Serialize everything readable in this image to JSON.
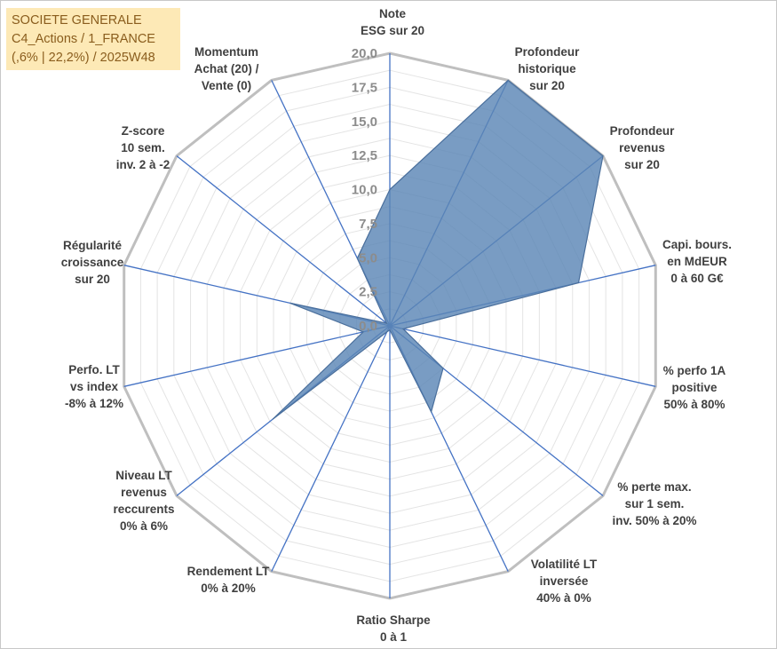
{
  "header": {
    "line1": "SOCIETE GENERALE",
    "line2": "C4_Actions / 1_FRANCE",
    "line3": "(,6% | 22,2%) / 2025W48"
  },
  "chart_data": {
    "type": "radar",
    "title": "SOCIETE GENERALE",
    "r_max": 20,
    "r_ticks": [
      "0,0",
      "2,5",
      "5,0",
      "7,5",
      "10,0",
      "12,5",
      "15,0",
      "17,5",
      "20,0"
    ],
    "r_tick_values": [
      0,
      2.5,
      5,
      7.5,
      10,
      12.5,
      15,
      17.5,
      20
    ],
    "grid_step": 1.25,
    "colors": {
      "fill": "#5b86b6",
      "stroke": "#4a6f9c",
      "spoke": "#4472c4",
      "ring": "#e4e4e4",
      "ring_outer": "#bfbfbf"
    },
    "axes": [
      {
        "label_lines": [
          "Note",
          "ESG sur 20"
        ]
      },
      {
        "label_lines": [
          "Profondeur",
          "historique",
          "sur 20"
        ]
      },
      {
        "label_lines": [
          "Profondeur",
          "revenus",
          "sur 20"
        ]
      },
      {
        "label_lines": [
          "Capi. bours.",
          "en MdEUR",
          "0 à 60 G€"
        ]
      },
      {
        "label_lines": [
          "% perfo 1A",
          "positive",
          "50% à 80%"
        ]
      },
      {
        "label_lines": [
          "% perte max.",
          "sur 1 sem.",
          "inv. 50% à 20%"
        ]
      },
      {
        "label_lines": [
          "Volatilité LT",
          "inversée",
          "40% à 0%"
        ]
      },
      {
        "label_lines": [
          "Ratio Sharpe",
          "0 à 1"
        ]
      },
      {
        "label_lines": [
          "Rendement LT",
          "0% à 20%"
        ]
      },
      {
        "label_lines": [
          "Niveau LT",
          "revenus",
          "reccurents",
          "0% à 6%"
        ]
      },
      {
        "label_lines": [
          "Perfo. LT",
          "vs index",
          "-8% à 12%"
        ]
      },
      {
        "label_lines": [
          "Régularité",
          "croissance",
          "sur 20"
        ]
      },
      {
        "label_lines": [
          "Z-score",
          "10 sem.",
          "inv. 2 à -2"
        ]
      },
      {
        "label_lines": [
          "Momentum",
          "Achat (20) /",
          "Vente (0)"
        ]
      }
    ],
    "series": [
      {
        "name": "SOCIETE GENERALE",
        "values": [
          10.0,
          20.0,
          20.0,
          14.2,
          1.0,
          5.0,
          7.0,
          0.3,
          0.5,
          11.0,
          2.0,
          7.5,
          0.3,
          5.5
        ]
      }
    ]
  }
}
